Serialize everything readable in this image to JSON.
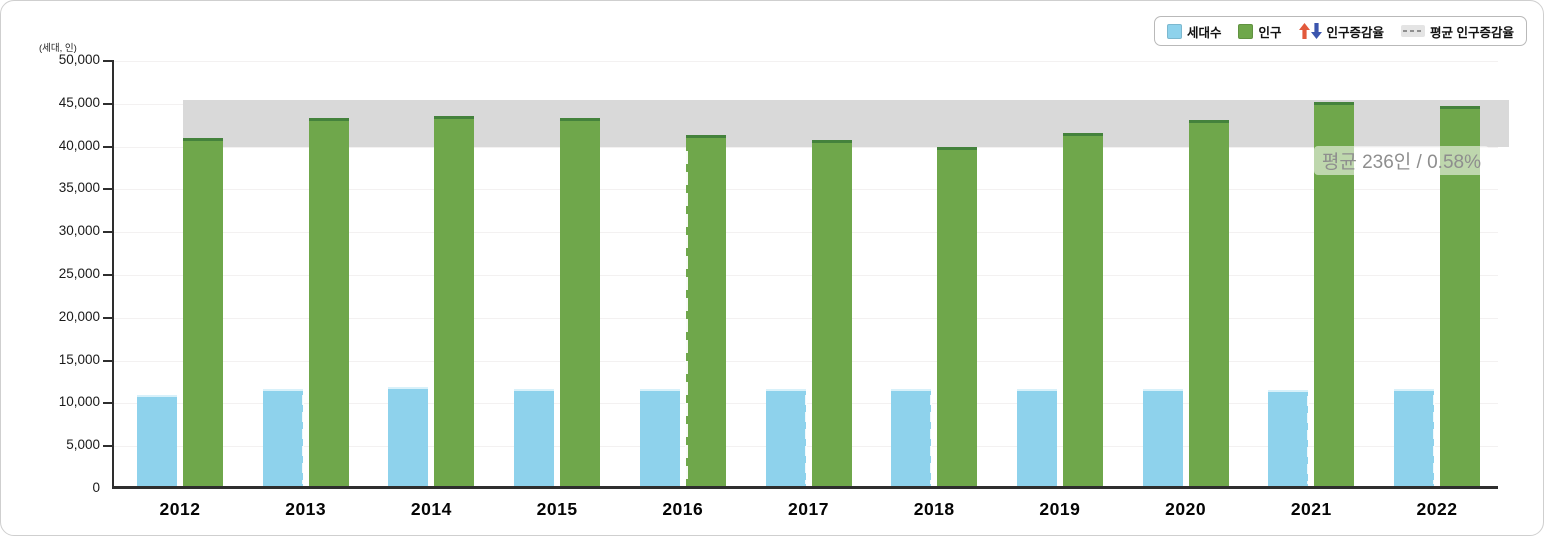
{
  "legend": {
    "items": [
      {
        "label": "세대수",
        "type": "square",
        "color": "#8ed2ec"
      },
      {
        "label": "인구",
        "type": "square",
        "color": "#6fa74b"
      },
      {
        "label": "인구증감율",
        "type": "arrows",
        "up_color": "#e2593c",
        "down_color": "#3b55ae"
      },
      {
        "label": "평균 인구증감율",
        "type": "dashed-line",
        "color": "#8f8f8f"
      }
    ]
  },
  "axis": {
    "unit_label": "(세대, 인)",
    "y_tick_labels": [
      "50,000",
      "45,000",
      "40,000",
      "35,000",
      "30,000",
      "25,000",
      "20,000",
      "15,000",
      "10,000",
      "5,000",
      "0"
    ],
    "x_tick_labels": [
      "2012",
      "2013",
      "2014",
      "2015",
      "2016",
      "2017",
      "2018",
      "2019",
      "2020",
      "2021",
      "2022"
    ]
  },
  "annotation": {
    "text": "평균 236인 / 0.58%"
  },
  "chart_data": {
    "type": "bar",
    "title": "",
    "ylabel_unit": "(세대, 인)",
    "categories": [
      "2012",
      "2013",
      "2014",
      "2015",
      "2016",
      "2017",
      "2018",
      "2019",
      "2020",
      "2021",
      "2022"
    ],
    "series": [
      {
        "name": "세대수",
        "color": "#8ed2ec",
        "cap_color": "#d8f1fa",
        "values": [
          10650,
          11300,
          11600,
          11300,
          11300,
          11300,
          11300,
          11300,
          11300,
          11250,
          11300
        ]
      },
      {
        "name": "인구",
        "color": "#6fa74b",
        "cap_color": "#44823c",
        "values": [
          40650,
          42950,
          43200,
          42950,
          41050,
          40400,
          39650,
          41200,
          42750,
          44900,
          44400
        ]
      }
    ],
    "band": {
      "label": "평균 인구증감율",
      "from": 39950,
      "to": 45400,
      "color": "#d9d9d9"
    },
    "ylim": [
      0,
      50000
    ],
    "y_tick_step": 5000,
    "grid": "faint-horizontal",
    "legend_position": "top-right",
    "average_annotation": "평균 236인 / 0.58%"
  },
  "decorations": {
    "selected_year_dashed_line": "2016",
    "blue_edge_dash_years": [
      "2013",
      "2017",
      "2018",
      "2021",
      "2022"
    ]
  }
}
